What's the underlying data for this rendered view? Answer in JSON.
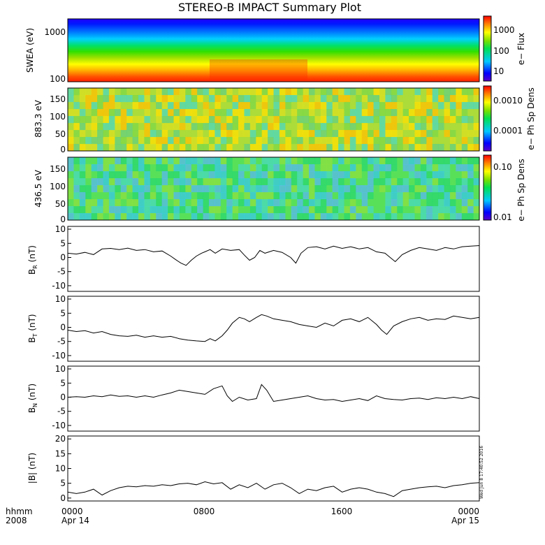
{
  "title": "STEREO-B IMPACT Summary Plot",
  "footer": {
    "hhmm_label": "hhmm",
    "year_label": "2008",
    "time_ticks": [
      "0000",
      "0800",
      "1600",
      "0000"
    ],
    "date_ticks": [
      "Apr 14",
      "",
      "",
      "Apr 15"
    ],
    "stamp": "Wed Jun  8 17:40:52 2016"
  },
  "chart_data": [
    {
      "type": "heatmap",
      "ylabel": "SWEA (eV)",
      "yscale": "log",
      "ylim": [
        90,
        2000
      ],
      "ytick_labels": [
        "1000",
        "100"
      ],
      "colorbar": {
        "label": "e− Flux",
        "scale": "log",
        "range": [
          3,
          3000
        ],
        "tick_labels": [
          "1000",
          "100",
          "10"
        ]
      },
      "description_of_values": "flux highest at low energy (~100 eV, red) decreasing to ~10 near 1500 eV (blue)"
    },
    {
      "type": "heatmap",
      "ylabel": "883.3 eV",
      "ylim": [
        0,
        180
      ],
      "ytick_labels": [
        "150",
        "100",
        "50",
        "0"
      ],
      "colorbar": {
        "label": "e− Ph Sp Dens",
        "scale": "log",
        "range": [
          1e-05,
          0.003
        ],
        "tick_labels": [
          "0.0010",
          "0.0001"
        ]
      }
    },
    {
      "type": "heatmap",
      "ylabel": "436.5 eV",
      "ylim": [
        0,
        180
      ],
      "ytick_labels": [
        "150",
        "100",
        "50",
        "0"
      ],
      "colorbar": {
        "label": "e− Ph Sp Dens",
        "scale": "log",
        "range": [
          0.008,
          0.14
        ],
        "tick_labels": [
          "0.10",
          "0.01"
        ]
      }
    },
    {
      "type": "line",
      "ylabel": "BR (nT)",
      "ylabel_main": "B",
      "ylabel_sub": "R",
      "ylabel_tail": " (nT)",
      "ylim": [
        -12,
        11
      ],
      "ytick_labels": [
        "10",
        "5",
        "0",
        "-5",
        "-10"
      ],
      "x_hours": [
        0,
        0.5,
        1,
        1.5,
        2,
        2.5,
        3,
        3.5,
        4,
        4.5,
        5,
        5.5,
        6,
        6.3,
        6.6,
        6.9,
        7.2,
        7.5,
        7.8,
        8,
        8.3,
        8.6,
        9,
        9.5,
        10,
        10.3,
        10.6,
        10.9,
        11.2,
        11.5,
        12,
        12.5,
        13,
        13.3,
        13.6,
        14,
        14.5,
        15,
        15.5,
        16,
        16.5,
        17,
        17.5,
        18,
        18.5,
        18.8,
        19.1,
        19.5,
        20,
        20.5,
        21,
        21.5,
        22,
        22.5,
        23,
        23.5,
        24
      ],
      "y": [
        1.5,
        1.2,
        1.8,
        1.0,
        3.0,
        3.2,
        2.8,
        3.3,
        2.5,
        2.8,
        2.0,
        2.3,
        0.5,
        -0.8,
        -2.0,
        -2.8,
        -1.0,
        0.5,
        1.5,
        2.0,
        2.8,
        1.5,
        3.0,
        2.5,
        2.8,
        0.8,
        -1.0,
        0.0,
        2.5,
        1.5,
        2.5,
        1.8,
        0.0,
        -2.0,
        1.5,
        3.5,
        3.8,
        3.0,
        4.0,
        3.2,
        3.8,
        3.0,
        3.5,
        2.0,
        1.5,
        0.0,
        -1.5,
        1.0,
        2.5,
        3.5,
        3.0,
        2.5,
        3.5,
        3.0,
        3.8,
        4.0,
        4.2
      ]
    },
    {
      "type": "line",
      "ylabel": "BT (nT)",
      "ylabel_main": "B",
      "ylabel_sub": "T",
      "ylabel_tail": " (nT)",
      "ylim": [
        -12,
        11
      ],
      "ytick_labels": [
        "10",
        "5",
        "0",
        "-5",
        "-10"
      ],
      "x_hours": [
        0,
        0.5,
        1,
        1.5,
        2,
        2.5,
        3,
        3.5,
        4,
        4.5,
        5,
        5.5,
        6,
        6.5,
        7,
        7.5,
        8,
        8.3,
        8.6,
        9,
        9.3,
        9.6,
        10,
        10.3,
        10.6,
        11,
        11.3,
        11.6,
        12,
        12.5,
        13,
        13.5,
        14,
        14.5,
        15,
        15.5,
        16,
        16.5,
        17,
        17.5,
        18,
        18.3,
        18.6,
        19,
        19.5,
        20,
        20.5,
        21,
        21.5,
        22,
        22.5,
        23,
        23.5,
        24
      ],
      "y": [
        -1.0,
        -1.5,
        -1.2,
        -2.0,
        -1.5,
        -2.5,
        -3.0,
        -3.2,
        -2.8,
        -3.5,
        -3.0,
        -3.5,
        -3.2,
        -4.0,
        -4.5,
        -4.8,
        -5.0,
        -4.0,
        -4.8,
        -3.0,
        -1.0,
        1.5,
        3.5,
        3.0,
        2.0,
        3.5,
        4.5,
        4.0,
        3.0,
        2.5,
        2.0,
        1.0,
        0.5,
        0.0,
        1.5,
        0.5,
        2.5,
        3.0,
        2.0,
        3.5,
        1.0,
        -1.0,
        -2.5,
        0.5,
        2.0,
        3.0,
        3.5,
        2.5,
        3.0,
        2.8,
        4.0,
        3.5,
        3.0,
        3.5
      ]
    },
    {
      "type": "line",
      "ylabel": "BN (nT)",
      "ylabel_main": "B",
      "ylabel_sub": "N",
      "ylabel_tail": " (nT)",
      "ylim": [
        -12,
        11
      ],
      "ytick_labels": [
        "10",
        "5",
        "0",
        "-5",
        "-10"
      ],
      "x_hours": [
        0,
        0.5,
        1,
        1.5,
        2,
        2.5,
        3,
        3.5,
        4,
        4.5,
        5,
        5.5,
        6,
        6.5,
        7,
        7.5,
        8,
        8.5,
        9,
        9.3,
        9.6,
        10,
        10.5,
        11,
        11.3,
        11.6,
        12,
        12.5,
        13,
        13.5,
        14,
        14.5,
        15,
        15.5,
        16,
        16.5,
        17,
        17.5,
        18,
        18.5,
        19,
        19.5,
        20,
        20.5,
        21,
        21.5,
        22,
        22.5,
        23,
        23.5,
        24
      ],
      "y": [
        0.0,
        0.2,
        0.0,
        0.5,
        0.2,
        0.8,
        0.3,
        0.5,
        0.0,
        0.5,
        0.0,
        0.8,
        1.5,
        2.5,
        2.0,
        1.5,
        1.0,
        3.0,
        4.0,
        0.5,
        -1.5,
        0.0,
        -1.0,
        -0.5,
        4.5,
        2.5,
        -1.5,
        -1.0,
        -0.5,
        0.0,
        0.5,
        -0.5,
        -1.0,
        -0.8,
        -1.5,
        -1.0,
        -0.5,
        -1.2,
        0.5,
        -0.5,
        -0.8,
        -1.0,
        -0.5,
        -0.3,
        -0.8,
        -0.2,
        -0.5,
        0.0,
        -0.5,
        0.2,
        -0.5
      ]
    },
    {
      "type": "line",
      "ylabel": "|B| (nT)",
      "ylim": [
        -1,
        21
      ],
      "ytick_labels": [
        "20",
        "15",
        "10",
        "5",
        "0"
      ],
      "x_hours": [
        0,
        0.5,
        1,
        1.5,
        2,
        2.5,
        3,
        3.5,
        4,
        4.5,
        5,
        5.5,
        6,
        6.5,
        7,
        7.5,
        8,
        8.5,
        9,
        9.5,
        10,
        10.5,
        11,
        11.5,
        12,
        12.5,
        13,
        13.5,
        14,
        14.5,
        15,
        15.5,
        16,
        16.5,
        17,
        17.5,
        18,
        18.5,
        19,
        19.5,
        20,
        20.5,
        21,
        21.5,
        22,
        22.5,
        23,
        23.5,
        24
      ],
      "y": [
        2.0,
        1.5,
        2.0,
        3.0,
        1.0,
        2.5,
        3.5,
        4.0,
        3.8,
        4.2,
        4.0,
        4.5,
        4.2,
        4.8,
        5.0,
        4.5,
        5.5,
        4.8,
        5.2,
        3.0,
        4.5,
        3.5,
        5.0,
        3.0,
        4.5,
        5.0,
        3.5,
        1.5,
        3.0,
        2.5,
        3.5,
        4.0,
        2.0,
        3.0,
        3.5,
        3.0,
        2.0,
        1.5,
        0.5,
        2.5,
        3.0,
        3.5,
        3.8,
        4.0,
        3.5,
        4.2,
        4.5,
        5.0,
        5.2
      ]
    }
  ],
  "colors": {
    "frame": "#000000",
    "line": "#000000"
  }
}
